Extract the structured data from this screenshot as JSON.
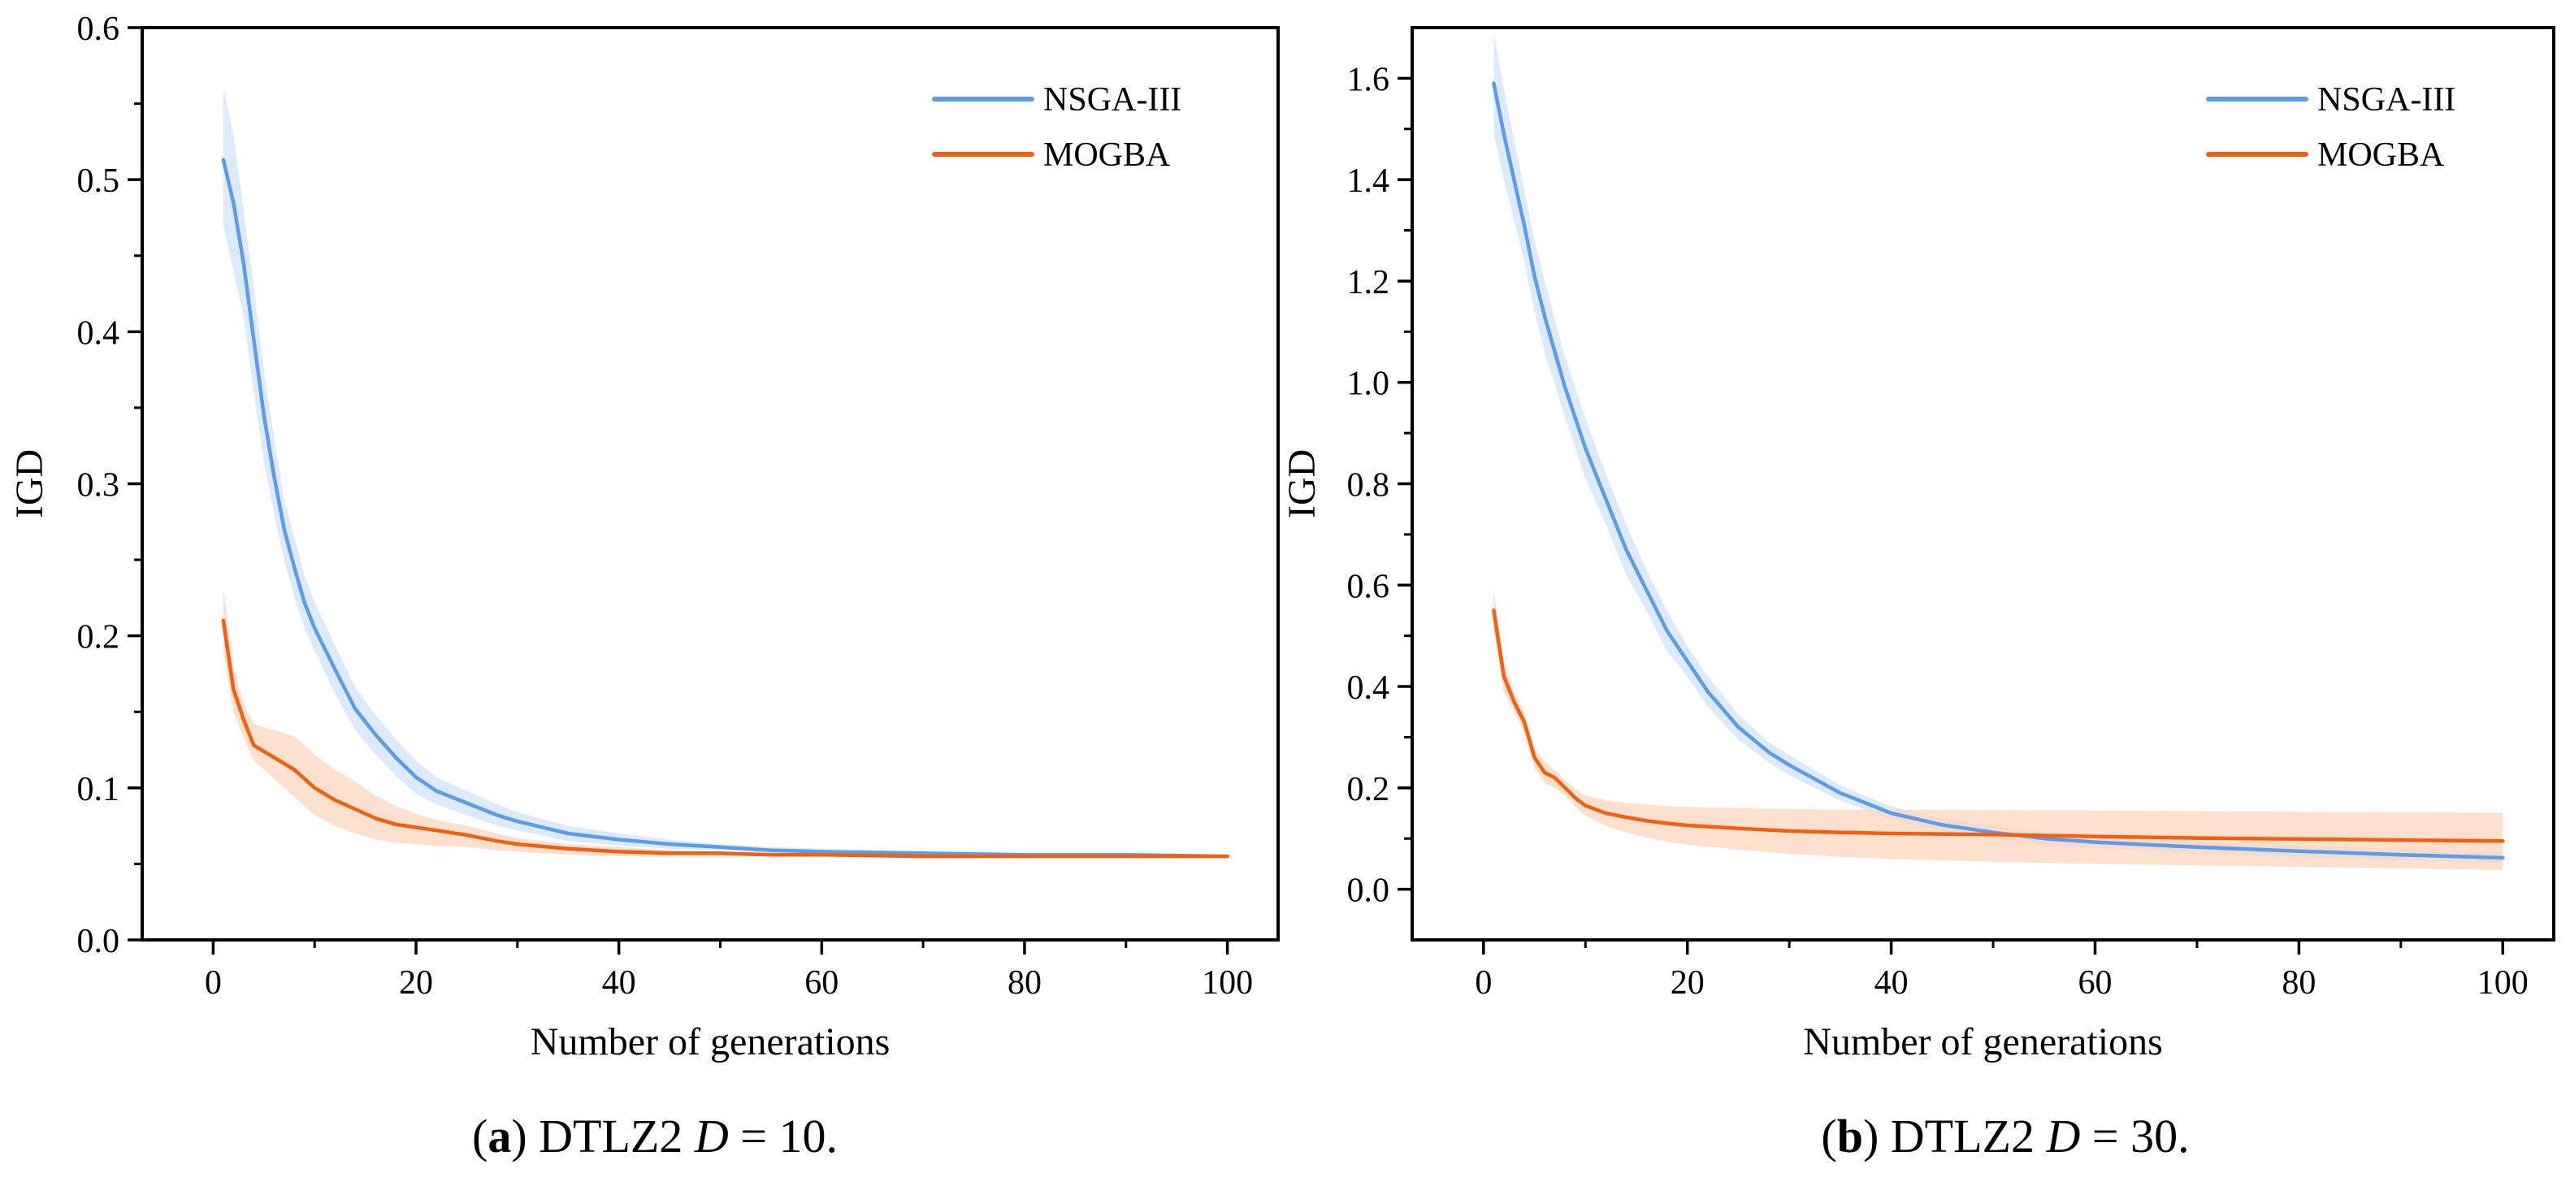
{
  "colors": {
    "nsga": "#5b9ce8",
    "mogba": "#f06010",
    "nsga_band": "#cfe3fb",
    "mogba_band": "#fbd4bc"
  },
  "chart_data": [
    {
      "type": "line",
      "caption": {
        "letter": "a",
        "text": "DTLZ2",
        "var": "D",
        "rest": " = 10."
      },
      "xlabel": "Number of generations",
      "ylabel": "IGD",
      "xlim": [
        -7,
        105
      ],
      "ylim": [
        0.0,
        0.6
      ],
      "xticks": [
        0,
        20,
        40,
        60,
        80,
        100
      ],
      "yticks": [
        0.0,
        0.1,
        0.2,
        0.3,
        0.4,
        0.5,
        0.6
      ],
      "xtick_labels": [
        "0",
        "20",
        "40",
        "60",
        "80",
        "100"
      ],
      "ytick_labels": [
        "0.0",
        "0.1",
        "0.2",
        "0.3",
        "0.4",
        "0.5",
        "0.6"
      ],
      "grid": false,
      "legend": "top-right",
      "series": [
        {
          "name": "NSGA-III",
          "color_key": "nsga",
          "x": [
            1,
            2,
            3,
            4,
            5,
            6,
            7,
            8,
            9,
            10,
            12,
            14,
            16,
            18,
            20,
            22,
            25,
            28,
            30,
            35,
            40,
            45,
            50,
            55,
            60,
            70,
            80,
            90,
            100
          ],
          "y": [
            0.513,
            0.485,
            0.445,
            0.395,
            0.345,
            0.305,
            0.27,
            0.245,
            0.222,
            0.205,
            0.178,
            0.152,
            0.135,
            0.12,
            0.107,
            0.098,
            0.09,
            0.082,
            0.078,
            0.07,
            0.066,
            0.063,
            0.061,
            0.059,
            0.058,
            0.057,
            0.056,
            0.056,
            0.055
          ],
          "band_upper": [
            0.56,
            0.53,
            0.48,
            0.43,
            0.375,
            0.33,
            0.29,
            0.265,
            0.24,
            0.222,
            0.194,
            0.166,
            0.148,
            0.132,
            0.118,
            0.107,
            0.098,
            0.089,
            0.084,
            0.075,
            0.07,
            0.066,
            0.063,
            0.061,
            0.06,
            0.058,
            0.057,
            0.056,
            0.056
          ],
          "band_lower": [
            0.47,
            0.44,
            0.41,
            0.36,
            0.315,
            0.28,
            0.25,
            0.225,
            0.205,
            0.19,
            0.162,
            0.138,
            0.122,
            0.108,
            0.096,
            0.089,
            0.082,
            0.075,
            0.072,
            0.065,
            0.062,
            0.06,
            0.059,
            0.057,
            0.057,
            0.056,
            0.055,
            0.055,
            0.054
          ]
        },
        {
          "name": "MOGBA",
          "color_key": "mogba",
          "x": [
            1,
            2,
            3,
            4,
            5,
            6,
            7,
            8,
            9,
            10,
            12,
            14,
            16,
            18,
            20,
            22,
            25,
            28,
            30,
            35,
            40,
            45,
            50,
            55,
            60,
            70,
            80,
            90,
            100
          ],
          "y": [
            0.21,
            0.165,
            0.145,
            0.128,
            0.124,
            0.12,
            0.116,
            0.112,
            0.106,
            0.1,
            0.092,
            0.086,
            0.08,
            0.076,
            0.074,
            0.072,
            0.069,
            0.065,
            0.063,
            0.06,
            0.058,
            0.057,
            0.057,
            0.056,
            0.056,
            0.055,
            0.055,
            0.055,
            0.055
          ],
          "band_upper": [
            0.232,
            0.18,
            0.155,
            0.142,
            0.14,
            0.138,
            0.136,
            0.134,
            0.128,
            0.122,
            0.112,
            0.104,
            0.095,
            0.088,
            0.083,
            0.079,
            0.075,
            0.07,
            0.067,
            0.063,
            0.061,
            0.059,
            0.058,
            0.057,
            0.057,
            0.056,
            0.056,
            0.055,
            0.055
          ],
          "band_lower": [
            0.19,
            0.15,
            0.133,
            0.118,
            0.112,
            0.106,
            0.1,
            0.094,
            0.088,
            0.082,
            0.075,
            0.07,
            0.066,
            0.064,
            0.063,
            0.062,
            0.061,
            0.059,
            0.058,
            0.056,
            0.055,
            0.055,
            0.055,
            0.055,
            0.055,
            0.054,
            0.054,
            0.054,
            0.054
          ]
        }
      ]
    },
    {
      "type": "line",
      "caption": {
        "letter": "b",
        "text": "DTLZ2",
        "var": "D",
        "rest": " = 30."
      },
      "xlabel": "Number of generations",
      "ylabel": "IGD",
      "xlim": [
        -7,
        105
      ],
      "ylim": [
        -0.1,
        1.7
      ],
      "xticks": [
        0,
        20,
        40,
        60,
        80,
        100
      ],
      "yticks": [
        0.0,
        0.2,
        0.4,
        0.6,
        0.8,
        1.0,
        1.2,
        1.4,
        1.6
      ],
      "xtick_labels": [
        "0",
        "20",
        "40",
        "60",
        "80",
        "100"
      ],
      "ytick_labels": [
        "0.0",
        "0.2",
        "0.4",
        "0.6",
        "0.8",
        "1.0",
        "1.2",
        "1.4",
        "1.6"
      ],
      "grid": false,
      "legend": "top-right",
      "series": [
        {
          "name": "NSGA-III",
          "color_key": "nsga",
          "x": [
            1,
            2,
            3,
            4,
            5,
            6,
            8,
            10,
            12,
            14,
            16,
            18,
            20,
            22,
            25,
            28,
            30,
            35,
            40,
            45,
            50,
            55,
            60,
            70,
            80,
            90,
            100
          ],
          "y": [
            1.59,
            1.49,
            1.4,
            1.31,
            1.21,
            1.13,
            0.99,
            0.87,
            0.77,
            0.67,
            0.59,
            0.51,
            0.45,
            0.39,
            0.32,
            0.27,
            0.245,
            0.19,
            0.15,
            0.127,
            0.112,
            0.1,
            0.093,
            0.083,
            0.075,
            0.068,
            0.062
          ],
          "band_upper": [
            1.69,
            1.58,
            1.48,
            1.38,
            1.28,
            1.2,
            1.05,
            0.93,
            0.82,
            0.72,
            0.63,
            0.55,
            0.48,
            0.42,
            0.345,
            0.29,
            0.265,
            0.205,
            0.163,
            0.14,
            0.124,
            0.112,
            0.104,
            0.094,
            0.086,
            0.079,
            0.073
          ],
          "band_lower": [
            1.49,
            1.4,
            1.32,
            1.24,
            1.14,
            1.06,
            0.93,
            0.81,
            0.72,
            0.62,
            0.55,
            0.47,
            0.42,
            0.36,
            0.295,
            0.25,
            0.225,
            0.175,
            0.137,
            0.114,
            0.1,
            0.088,
            0.082,
            0.072,
            0.064,
            0.057,
            0.051
          ]
        },
        {
          "name": "MOGBA",
          "color_key": "mogba",
          "x": [
            1,
            2,
            3,
            4,
            5,
            6,
            7,
            8,
            9,
            10,
            12,
            14,
            16,
            18,
            20,
            25,
            30,
            35,
            40,
            50,
            60,
            70,
            80,
            90,
            100
          ],
          "y": [
            0.55,
            0.42,
            0.37,
            0.33,
            0.26,
            0.23,
            0.22,
            0.2,
            0.18,
            0.165,
            0.15,
            0.142,
            0.135,
            0.13,
            0.126,
            0.12,
            0.115,
            0.112,
            0.11,
            0.108,
            0.104,
            0.101,
            0.099,
            0.097,
            0.095
          ],
          "band_upper": [
            0.59,
            0.45,
            0.39,
            0.35,
            0.28,
            0.25,
            0.235,
            0.215,
            0.198,
            0.185,
            0.175,
            0.17,
            0.167,
            0.164,
            0.162,
            0.16,
            0.158,
            0.157,
            0.157,
            0.156,
            0.155,
            0.154,
            0.153,
            0.152,
            0.151
          ],
          "band_lower": [
            0.51,
            0.39,
            0.35,
            0.31,
            0.24,
            0.21,
            0.2,
            0.185,
            0.163,
            0.145,
            0.125,
            0.112,
            0.102,
            0.094,
            0.088,
            0.078,
            0.07,
            0.064,
            0.06,
            0.054,
            0.05,
            0.047,
            0.044,
            0.041,
            0.038
          ]
        }
      ]
    }
  ]
}
